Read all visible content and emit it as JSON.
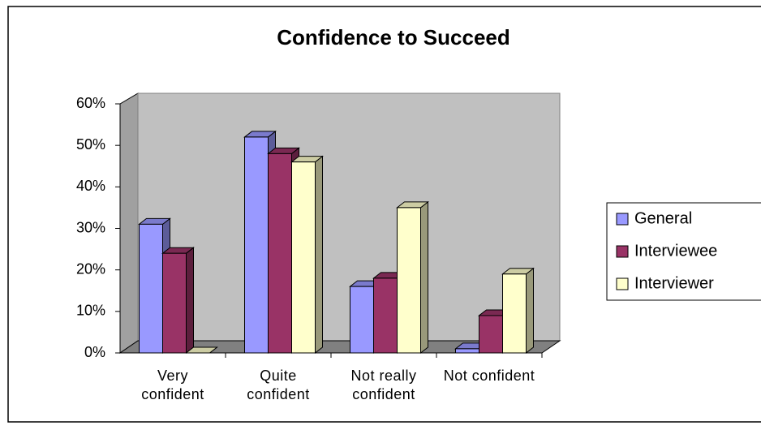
{
  "chart_data": {
    "type": "bar3d",
    "title": "Confidence to Succeed",
    "categories": [
      "Very confident",
      "Quite confident",
      "Not really confident",
      "Not confident"
    ],
    "series": [
      {
        "name": "General",
        "color": "#9999ff",
        "values": [
          31,
          52,
          16,
          1
        ]
      },
      {
        "name": "Interviewee",
        "color": "#993366",
        "values": [
          24,
          48,
          18,
          9
        ]
      },
      {
        "name": "Interviewer",
        "color": "#ffffcc",
        "values": [
          0,
          46,
          35,
          19
        ]
      }
    ],
    "ylim": [
      0,
      60
    ],
    "yticks": [
      {
        "value": 0,
        "label": "0%"
      },
      {
        "value": 10,
        "label": "10%"
      },
      {
        "value": 20,
        "label": "20%"
      },
      {
        "value": 30,
        "label": "30%"
      },
      {
        "value": 40,
        "label": "40%"
      },
      {
        "value": 50,
        "label": "50%"
      },
      {
        "value": 60,
        "label": "60%"
      }
    ],
    "legend": "right"
  }
}
